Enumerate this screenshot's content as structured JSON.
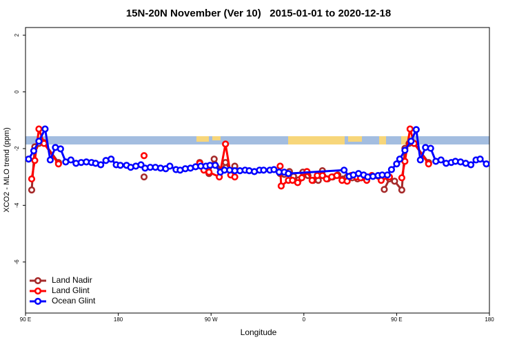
{
  "chart_data": {
    "type": "line",
    "title": "15N-20N November (Ver 10)   2015-01-01 to 2020-12-18",
    "xlabel": "Longitude",
    "ylabel": "XCO2 - MLO trend (ppm)",
    "xlim": [
      90,
      540
    ],
    "xticks": [
      {
        "value": 90,
        "label": "90 E"
      },
      {
        "value": 180,
        "label": "180"
      },
      {
        "value": 270,
        "label": "90 W"
      },
      {
        "value": 360,
        "label": "0"
      },
      {
        "value": 450,
        "label": "90 E"
      },
      {
        "value": 540,
        "label": "180"
      }
    ],
    "ylim": [
      -7.8,
      2.27
    ],
    "yticks": [
      2,
      0,
      -2,
      -4,
      -6
    ],
    "legend": "bottom-left",
    "series": [
      {
        "name": "Land Nadir",
        "color": "#a52a2a",
        "x": [
          96,
          99,
          103,
          108,
          122,
          null,
          205,
          null,
          259,
          264,
          268,
          273,
          280,
          284,
          289,
          293,
          null,
          337,
          341,
          346,
          350,
          355,
          359,
          364,
          369,
          374,
          378,
          383,
          388,
          393,
          398,
          402,
          407,
          412,
          416,
          null,
          438,
          443,
          448,
          455,
          458,
          462,
          467,
          481
        ],
        "values": [
          -3.46,
          -1.94,
          -1.82,
          -1.79,
          -2.49,
          null,
          -3.0,
          null,
          -2.49,
          -2.71,
          -2.88,
          -2.37,
          -2.78,
          -2.49,
          -2.78,
          -2.62,
          null,
          -2.88,
          -2.91,
          -2.81,
          -2.98,
          -3.1,
          -2.83,
          -2.95,
          -3.12,
          -3.12,
          -2.78,
          -3.07,
          -3.0,
          -2.93,
          -3.07,
          -3.0,
          -3.03,
          -3.07,
          -3.03,
          null,
          -3.44,
          -3.07,
          -3.15,
          -3.46,
          -1.99,
          -1.82,
          -1.82,
          -2.49
        ]
      },
      {
        "name": "Land Glint",
        "color": "#ff0000",
        "x": [
          96,
          99,
          103,
          108,
          122,
          null,
          205,
          null,
          259,
          263,
          268,
          278,
          284,
          289,
          293,
          null,
          337,
          338,
          345,
          349,
          354,
          358,
          363,
          368,
          373,
          378,
          382,
          387,
          392,
          397,
          402,
          406,
          411,
          415,
          421,
          426,
          435,
          443,
          null,
          455,
          458,
          463,
          467,
          481
        ],
        "values": [
          -3.07,
          -2.42,
          -1.31,
          -1.82,
          -2.54,
          null,
          -2.25,
          null,
          -2.52,
          -2.76,
          -2.83,
          -3.0,
          -1.84,
          -2.93,
          -3.0,
          null,
          -2.62,
          -3.32,
          -3.12,
          -3.12,
          -3.2,
          -3.03,
          -2.81,
          -3.12,
          -2.95,
          -2.95,
          -3.07,
          -3.0,
          -2.95,
          -3.12,
          -3.15,
          -2.95,
          -3.0,
          -3.03,
          -3.12,
          -2.95,
          -3.12,
          -3.0,
          null,
          -3.03,
          -2.45,
          -1.31,
          -1.82,
          -2.54
        ]
      },
      {
        "name": "Ocean Glint",
        "color": "#0000ff",
        "x": [
          93,
          98,
          103,
          109,
          114,
          119,
          124,
          129,
          134,
          139,
          144,
          149,
          154,
          158,
          163,
          168,
          173,
          178,
          182,
          188,
          192,
          197,
          202,
          206,
          211,
          216,
          221,
          226,
          230,
          236,
          240,
          245,
          250,
          255,
          260,
          265,
          269,
          274,
          279,
          283,
          288,
          293,
          298,
          303,
          307,
          312,
          317,
          321,
          327,
          331,
          336,
          341,
          345,
          399,
          404,
          408,
          413,
          418,
          422,
          427,
          432,
          436,
          441,
          445,
          450,
          453,
          458,
          464,
          469,
          473,
          478,
          483,
          488,
          493,
          498,
          503,
          507,
          512,
          517,
          522,
          527,
          531,
          537
        ],
        "values": [
          -2.37,
          -2.08,
          -1.74,
          -1.31,
          -2.4,
          -1.96,
          -2.01,
          -2.47,
          -2.4,
          -2.52,
          -2.49,
          -2.47,
          -2.49,
          -2.52,
          -2.57,
          -2.42,
          -2.37,
          -2.57,
          -2.59,
          -2.59,
          -2.66,
          -2.62,
          -2.57,
          -2.69,
          -2.66,
          -2.66,
          -2.69,
          -2.71,
          -2.62,
          -2.74,
          -2.76,
          -2.71,
          -2.69,
          -2.64,
          -2.62,
          -2.62,
          -2.59,
          -2.59,
          -2.83,
          -2.76,
          -2.76,
          -2.78,
          -2.78,
          -2.76,
          -2.78,
          -2.81,
          -2.76,
          -2.76,
          -2.76,
          -2.74,
          -2.83,
          -2.83,
          -2.88,
          -2.76,
          -2.98,
          -2.93,
          -2.88,
          -2.93,
          -3.0,
          -2.98,
          -2.95,
          -2.93,
          -2.93,
          -2.74,
          -2.54,
          -2.37,
          -2.06,
          -1.74,
          -1.33,
          -2.4,
          -1.96,
          -1.99,
          -2.45,
          -2.4,
          -2.52,
          -2.49,
          -2.45,
          -2.47,
          -2.52,
          -2.57,
          -2.4,
          -2.37,
          -2.54
        ]
      }
    ]
  }
}
